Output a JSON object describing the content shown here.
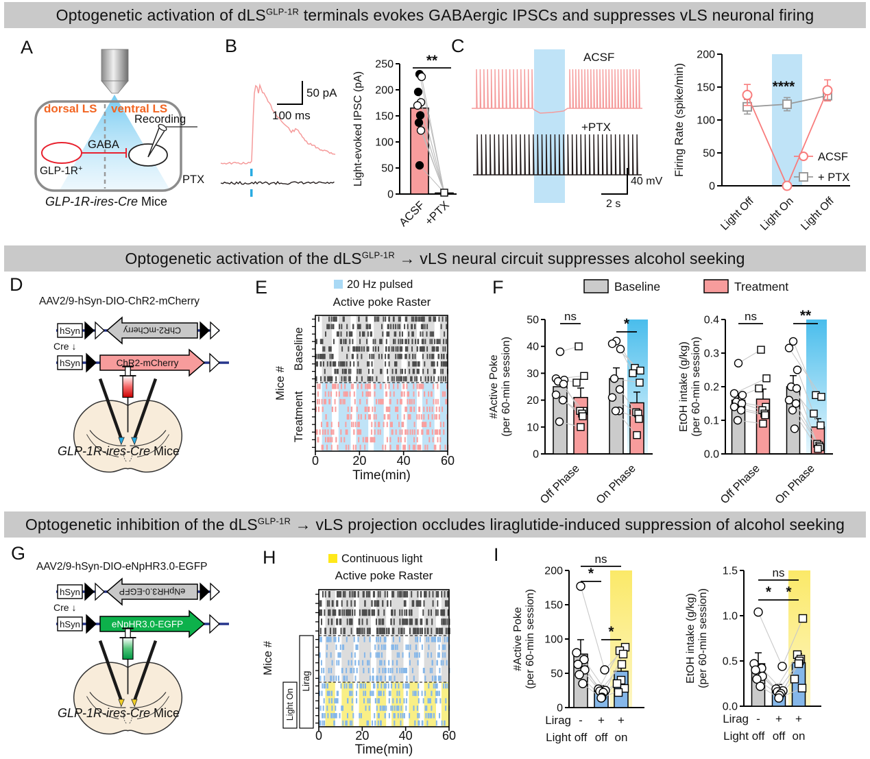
{
  "headers": [
    {
      "pre": "Optogenetic activation of dLS",
      "sup": "GLP-1R",
      "post": " terminals evokes GABAergic IPSCs and suppresses vLS neuronal firing"
    },
    {
      "pre": "Optogenetic activation of the dLS",
      "sup": "GLP-1R",
      "post": " → vLS neural circuit suppresses alcohol seeking"
    },
    {
      "pre": "Optogenetic inhibition of the dLS",
      "sup": "GLP-1R",
      "post": " → vLS projection occludes liraglutide-induced suppression of alcohol seeking"
    }
  ],
  "colors": {
    "header_bg": "#c9c9c9",
    "pink": "#f79c9c",
    "pink_trace": "#f59a9a",
    "gray_bar": "#cbcbcb",
    "blue_bar": "#85b7e9",
    "light_blue": "#bfe3f7",
    "band_gray": "#dcdcdc",
    "band_yellow": "#f9ef86",
    "legend_yellow": "#ffe81a",
    "legend_blue": "#a9d9f5",
    "orange": "#f26522",
    "red": "#e8212e",
    "green": "#0db14b",
    "blue_tick": "#29abe2"
  },
  "panelA": {
    "label": "A",
    "dorsal": "dorsal LS",
    "ventral": "ventral LS",
    "recording": "Recording",
    "gaba": "GABA",
    "glp": "GLP-1R",
    "glp_sup": "+",
    "ptx": "PTX",
    "caption_italic": "GLP-1R-ires-Cre",
    "caption_rest": " Mice"
  },
  "panelB": {
    "label": "B",
    "scale_v": "50 pA",
    "scale_h": "100 ms"
  },
  "panelC": {
    "label": "C",
    "acsf": "ACSF",
    "ptx": "+PTX",
    "scale_v": "40 mV",
    "scale_h": "2 s"
  },
  "panelD": {
    "label": "D",
    "title": "AAV2/9-hSyn-DIO-ChR2-mCherry",
    "hsyn": "hSyn",
    "cre": "Cre ↓",
    "gene": "ChR2-mCherry",
    "caption_italic": "GLP-1R-ires-Cre",
    "caption_rest": " Mice"
  },
  "panelE": {
    "label": "E"
  },
  "panelF": {
    "label": "F",
    "legend": [
      "Baseline",
      "Treatment"
    ]
  },
  "panelG": {
    "label": "G",
    "title": "AAV2/9-hSyn-DIO-eNpHR3.0-EGFP",
    "hsyn": "hSyn",
    "cre": "Cre ↓",
    "gene": "eNpHR3.0-EGFP",
    "caption_italic": "GLP-1R-ires-Cre",
    "caption_rest": " Mice"
  },
  "panelH": {
    "label": "H"
  },
  "panelI": {
    "label": "I"
  },
  "chart_data": [
    {
      "id": "ipsc_bar",
      "type": "bar",
      "ylabel": "Light-evoked IPSC (pA)",
      "ylim": [
        0,
        250
      ],
      "yticks": [
        0,
        50,
        100,
        150,
        200,
        250
      ],
      "categories": [
        "ACSF",
        "+PTX"
      ],
      "values": [
        165,
        2
      ],
      "points_acsf": [
        230,
        225,
        196,
        176,
        170,
        151,
        137,
        122,
        55
      ],
      "point_fills": [
        "#000",
        "#fff",
        "#000",
        "#fff",
        "#fff",
        "#000",
        "#000",
        "#fff",
        "#000"
      ],
      "points_ptx": [
        0,
        0,
        0,
        0,
        0,
        0,
        0,
        0,
        0
      ],
      "sig": "**"
    },
    {
      "id": "firing_line",
      "type": "line",
      "ylabel": "Firing Rate (spike/min)",
      "ylim": [
        0,
        200
      ],
      "yticks": [
        0,
        50,
        100,
        150,
        200
      ],
      "categories": [
        "Light Off",
        "Light On",
        "Light Off"
      ],
      "band_category": 1,
      "sig": "****",
      "series": [
        {
          "name": "ACSF",
          "marker": "circle",
          "color": "#f87c7c",
          "values": [
            138,
            0,
            145
          ],
          "errors": [
            16,
            0,
            16
          ]
        },
        {
          "name": "+ PTX",
          "marker": "square",
          "color": "#999999",
          "values": [
            120,
            124,
            137
          ],
          "errors": [
            11,
            10,
            8
          ]
        }
      ]
    },
    {
      "id": "raster_e",
      "type": "raster",
      "legend": "20 Hz pulsed",
      "title": "Active poke Raster",
      "ylabel": "Mice #",
      "xlabel": "Time(min)",
      "xlim": [
        0,
        60
      ],
      "xticks": [
        0,
        20,
        40,
        60
      ],
      "groups": [
        {
          "label": "Baseline",
          "rows": 9,
          "tick_color": "#4d4d4d",
          "band_color": "#dcdcdc",
          "density": 40
        },
        {
          "label": "Treatment",
          "rows": 9,
          "tick_color": "#f8a0a0",
          "band_color": "#bfe3f7",
          "density": 34
        }
      ],
      "light_bands_min": [
        [
          3,
          7.5
        ],
        [
          10.5,
          16
        ],
        [
          18.5,
          24
        ],
        [
          26.5,
          31
        ],
        [
          33.5,
          39
        ],
        [
          41.5,
          46
        ],
        [
          48.5,
          54
        ],
        [
          56.5,
          60
        ]
      ]
    },
    {
      "id": "poke_grouped",
      "type": "grouped_bar",
      "ylabel": [
        "#Active Poke",
        "(per 60-min session)"
      ],
      "ylim": [
        0,
        50
      ],
      "yticks": [
        0,
        10,
        20,
        30,
        40,
        50
      ],
      "ydec": 0,
      "group_labels": [
        "Off Phase",
        "On Phase"
      ],
      "series_names": [
        "Baseline",
        "Treatment"
      ],
      "bars": [
        [
          25,
          21
        ],
        [
          28,
          19
        ]
      ],
      "errors": [
        [
          2.5,
          3.5
        ],
        [
          4,
          4
        ]
      ],
      "points": [
        {
          "baseline": [
            38,
            28,
            27.5,
            27,
            26,
            22,
            20,
            12
          ],
          "treatment": [
            40,
            29,
            26.5,
            16,
            16,
            15,
            14,
            10
          ]
        },
        {
          "baseline": [
            42,
            41,
            39,
            28,
            24,
            21,
            16,
            16
          ],
          "treatment": [
            32,
            31,
            30,
            26.5,
            15.5,
            15,
            13,
            7
          ]
        }
      ],
      "sig": [
        "ns",
        "*"
      ]
    },
    {
      "id": "etoh_grouped",
      "type": "grouped_bar",
      "ylabel": [
        "EtOH intake (g/kg)",
        "(per 60-min session)"
      ],
      "ylim": [
        0,
        0.4
      ],
      "yticks": [
        0,
        0.1,
        0.2,
        0.3,
        0.4
      ],
      "ydec": 1,
      "group_labels": [
        "Off Phase",
        "On Phase"
      ],
      "series_names": [
        "Baseline",
        "Treatment"
      ],
      "bars": [
        [
          0.16,
          0.163
        ],
        [
          0.2,
          0.08
        ]
      ],
      "errors": [
        [
          0.018,
          0.03
        ],
        [
          0.033,
          0.025
        ]
      ],
      "points": [
        {
          "baseline": [
            0.27,
            0.18,
            0.175,
            0.155,
            0.15,
            0.14,
            0.13,
            0.1
          ],
          "treatment": [
            0.31,
            0.225,
            0.195,
            0.14,
            0.13,
            0.12,
            0.115,
            0.09
          ]
        },
        {
          "baseline": [
            0.335,
            0.315,
            0.25,
            0.2,
            0.195,
            0.16,
            0.15,
            0.13,
            0.075
          ],
          "treatment": [
            0.175,
            0.17,
            0.12,
            0.085,
            0.03,
            0.025,
            0.02,
            0.015
          ]
        }
      ],
      "sig": [
        "ns",
        "**"
      ]
    },
    {
      "id": "raster_h",
      "type": "raster",
      "legend": "Continuous light",
      "title": "Active poke Raster",
      "ylabel": "Mice #",
      "xlabel": "Time(min)",
      "xlim": [
        0,
        60
      ],
      "xticks": [
        0,
        20,
        40,
        60
      ],
      "groups": [
        {
          "label": "",
          "rows": 5,
          "tick_color": "#4d4d4d",
          "band_color": "#dcdcdc",
          "density": 48
        },
        {
          "label": "",
          "rows": 6,
          "tick_color": "#85b7e9",
          "band_color": "#dcdcdc",
          "density": 26
        },
        {
          "label": "",
          "rows": 6,
          "tick_color": "#85b7e9",
          "band_color": "#f9ef86",
          "density": 30
        }
      ],
      "side_boxes": [
        {
          "label": "Lirag"
        },
        {
          "label": "Light On"
        }
      ],
      "light_bands_min": [
        [
          3,
          7.5
        ],
        [
          10.5,
          16
        ],
        [
          18.5,
          24
        ],
        [
          26.5,
          31
        ],
        [
          33.5,
          39
        ],
        [
          41.5,
          46
        ],
        [
          48.5,
          54
        ],
        [
          56.5,
          60
        ]
      ]
    },
    {
      "id": "poke_bar3",
      "type": "bar3",
      "ylabel": [
        "#Active Poke",
        "(per 60-min session)"
      ],
      "ylim": [
        0,
        200
      ],
      "yticks": [
        0,
        50,
        100,
        150,
        200
      ],
      "ydec": 0,
      "bars": [
        78,
        25,
        53
      ],
      "errors": [
        21,
        7,
        12
      ],
      "bar_colors": [
        "#cbcbcb",
        "#85b7e9",
        "#85b7e9"
      ],
      "markers": [
        "circle",
        "circle",
        "square"
      ],
      "points": [
        [
          177,
          80,
          70,
          63,
          55,
          48,
          35
        ],
        [
          55,
          27,
          25,
          24,
          22,
          15,
          14
        ],
        [
          88,
          83,
          78,
          63,
          40,
          35,
          28,
          22
        ]
      ],
      "sig": [
        {
          "a": 0,
          "b": 1,
          "label": "*"
        },
        {
          "a": 1,
          "b": 2,
          "label": "*"
        },
        {
          "a": 0,
          "b": 2,
          "label": "ns"
        }
      ],
      "xrows": [
        {
          "label": "Lirag",
          "vals": [
            "-",
            "+",
            "+"
          ]
        },
        {
          "label": "Light",
          "vals": [
            "off",
            "off",
            "on"
          ]
        }
      ]
    },
    {
      "id": "etoh_bar3",
      "type": "bar3",
      "ylabel": [
        "EtOH intake (g/kg)",
        "(per 60-min session)"
      ],
      "ylim": [
        0,
        1.5
      ],
      "yticks": [
        0,
        0.5,
        1,
        1.5
      ],
      "ydec": 1,
      "bars": [
        0.47,
        0.18,
        0.48
      ],
      "errors": [
        0.12,
        0.06,
        0.1
      ],
      "bar_colors": [
        "#cbcbcb",
        "#85b7e9",
        "#85b7e9"
      ],
      "markers": [
        "circle",
        "circle",
        "square"
      ],
      "points": [
        [
          1.04,
          0.47,
          0.42,
          0.4,
          0.33,
          0.3,
          0.22
        ],
        [
          0.44,
          0.19,
          0.17,
          0.16,
          0.14,
          0.12,
          0.09
        ],
        [
          0.97,
          0.57,
          0.52,
          0.5,
          0.47,
          0.3,
          0.2
        ]
      ],
      "sig": [
        {
          "a": 0,
          "b": 1,
          "label": "*"
        },
        {
          "a": 1,
          "b": 2,
          "label": "*"
        },
        {
          "a": 0,
          "b": 2,
          "label": "ns"
        }
      ],
      "xrows": [
        {
          "label": "Lirag",
          "vals": [
            "-",
            "+",
            "+"
          ]
        },
        {
          "label": "Light",
          "vals": [
            "off",
            "off",
            "on"
          ]
        }
      ]
    }
  ]
}
